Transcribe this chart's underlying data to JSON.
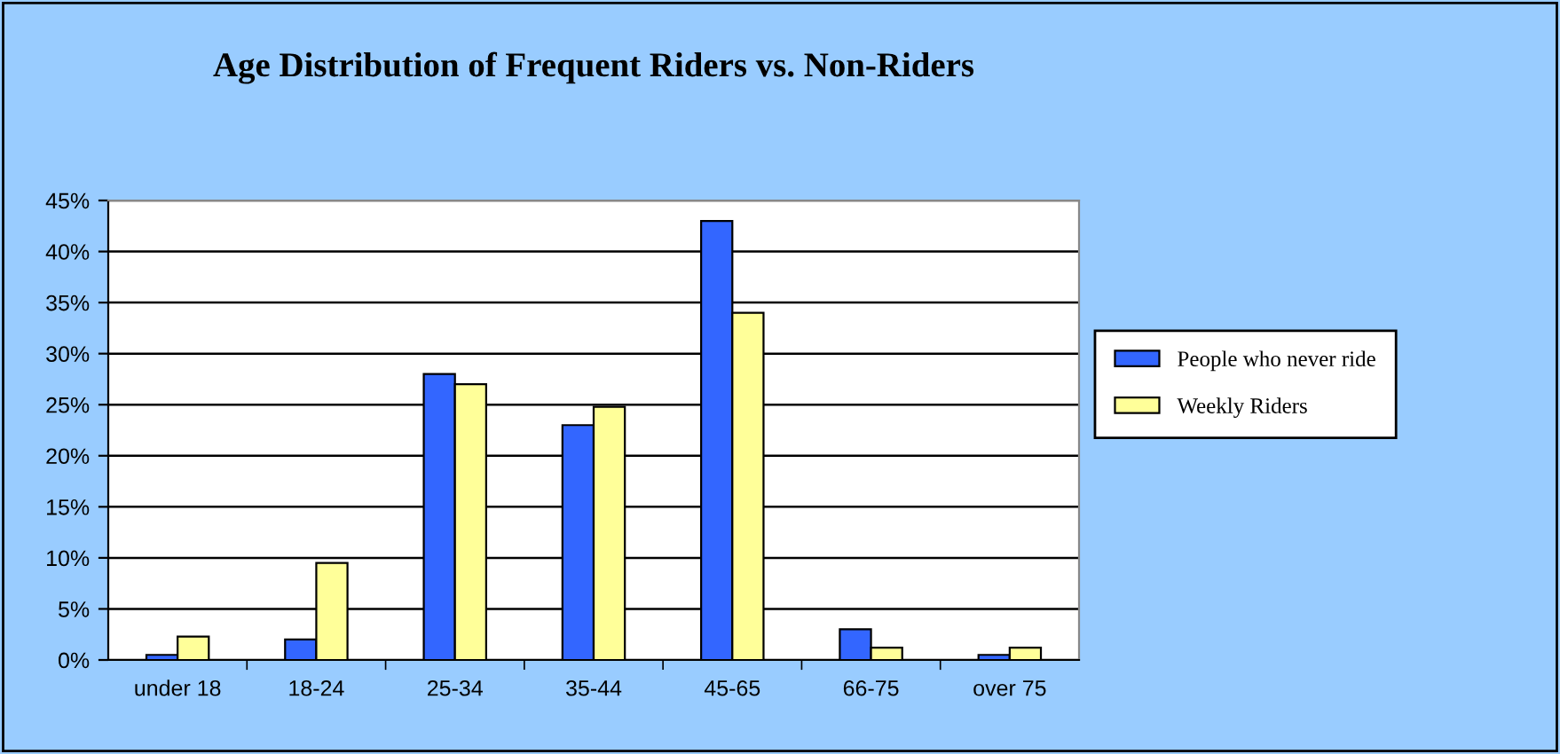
{
  "chart_data": {
    "type": "bar",
    "title": "Age Distribution of Frequent Riders vs. Non-Riders",
    "categories": [
      "under 18",
      "18-24",
      "25-34",
      "35-44",
      "45-65",
      "66-75",
      "over 75"
    ],
    "series": [
      {
        "name": "People who never ride",
        "color": "#3366ff",
        "values": [
          0.5,
          2,
          28,
          23,
          43,
          3,
          0.5
        ]
      },
      {
        "name": "Weekly Riders",
        "color": "#ffff99",
        "values": [
          2.3,
          9.5,
          27,
          24.8,
          34,
          1.2,
          1.2
        ]
      }
    ],
    "ylim": [
      0,
      45
    ],
    "yticks": [
      {
        "value": 0,
        "label": "0%"
      },
      {
        "value": 5,
        "label": "5%"
      },
      {
        "value": 10,
        "label": "10%"
      },
      {
        "value": 15,
        "label": "15%"
      },
      {
        "value": 20,
        "label": "20%"
      },
      {
        "value": 25,
        "label": "25%"
      },
      {
        "value": 30,
        "label": "30%"
      },
      {
        "value": 35,
        "label": "35%"
      },
      {
        "value": 40,
        "label": "40%"
      },
      {
        "value": 45,
        "label": "45%"
      }
    ],
    "grid": "y",
    "legend": "right"
  }
}
